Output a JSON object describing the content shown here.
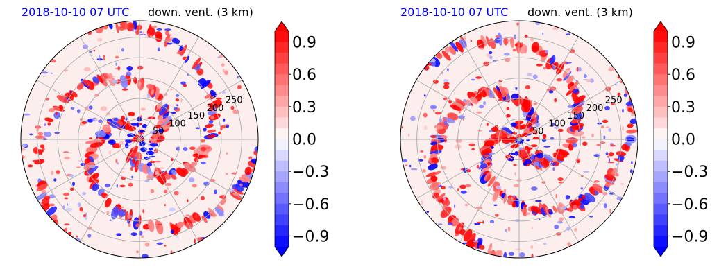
{
  "chart_data": [
    {
      "type": "heatmap",
      "projection": "polar",
      "title_left": "2018-10-10 07 UTC",
      "title_right": "down. vent. (3 km)",
      "radial_tick_labels": [
        "50",
        "100",
        "150",
        "200",
        "250"
      ],
      "radial_ticks": [
        50,
        100,
        150,
        200,
        250
      ],
      "rmax": 290,
      "angular_gridlines_deg": [
        0,
        30,
        60,
        90,
        120,
        150,
        180,
        210,
        240,
        270,
        300,
        330
      ],
      "colorbar": {
        "cmap": "bwr",
        "vmin": -1.0,
        "vmax": 1.0,
        "extend": "both",
        "ticks": [
          0.9,
          0.6,
          0.3,
          0.0,
          -0.3,
          -0.6,
          -0.9
        ],
        "tick_labels": [
          "0.9",
          "0.6",
          "0.3",
          "0.0",
          "−0.3",
          "−0.6",
          "−0.9"
        ]
      },
      "colors": {
        "title_left": "#0000ff",
        "positive": "#ff0000",
        "negative": "#0000ff",
        "grid": "#b0b0b0"
      }
    },
    {
      "type": "heatmap",
      "projection": "polar",
      "title_left": "2018-10-10 07 UTC",
      "title_right": "down. vent. (3 km)",
      "radial_tick_labels": [
        "50",
        "100",
        "150",
        "200",
        "250"
      ],
      "radial_ticks": [
        50,
        100,
        150,
        200,
        250
      ],
      "rmax": 290,
      "angular_gridlines_deg": [
        0,
        30,
        60,
        90,
        120,
        150,
        180,
        210,
        240,
        270,
        300,
        330
      ],
      "colorbar": {
        "cmap": "bwr",
        "vmin": -1.0,
        "vmax": 1.0,
        "extend": "both",
        "ticks": [
          0.9,
          0.6,
          0.3,
          0.0,
          -0.3,
          -0.6,
          -0.9
        ],
        "tick_labels": [
          "0.9",
          "0.6",
          "0.3",
          "0.0",
          "−0.3",
          "−0.6",
          "−0.9"
        ]
      },
      "colors": {
        "title_left": "#0000ff",
        "positive": "#ff0000",
        "negative": "#0000ff",
        "grid": "#b0b0b0"
      }
    }
  ]
}
